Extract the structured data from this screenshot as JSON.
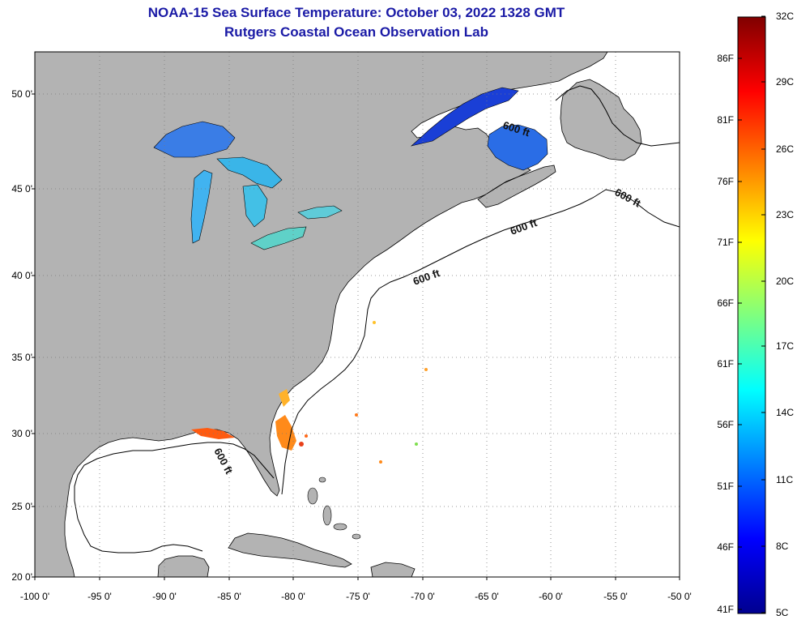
{
  "title": {
    "line1": "NOAA-15 Sea Surface Temperature:  October 03, 2022 1328 GMT",
    "line2": "Rutgers Coastal Ocean Observation Lab"
  },
  "map": {
    "lon_ticks": [
      "-100 0'",
      "-95 0'",
      "-90 0'",
      "-85 0'",
      "-80 0'",
      "-75 0'",
      "-70 0'",
      "-65 0'",
      "-60 0'",
      "-55 0'",
      "-50 0'"
    ],
    "lat_ticks": [
      "50 0'",
      "45 0'",
      "40 0'",
      "35 0'",
      "30 0'",
      "25 0'",
      "20 0'"
    ],
    "depth_contour_label": "600 ft",
    "colors": {
      "land": "#b3b3b3",
      "ocean": "#ffffff",
      "grid": "#7a7a7a"
    }
  },
  "colorbar": {
    "fahrenheit": [
      "86F",
      "81F",
      "76F",
      "71F",
      "66F",
      "61F",
      "56F",
      "51F",
      "46F",
      "41F"
    ],
    "celsius": [
      "32C",
      "29C",
      "26C",
      "23C",
      "20C",
      "17C",
      "14C",
      "11C",
      "8C",
      "5C"
    ]
  }
}
